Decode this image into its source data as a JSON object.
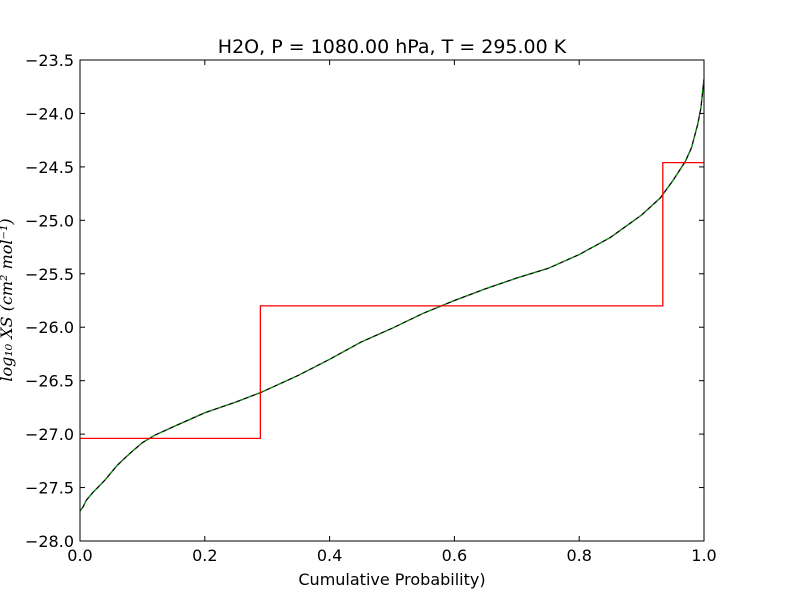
{
  "chart_data": {
    "type": "line",
    "title": "H2O, P = 1080.00 hPa, T = 295.00 K",
    "xlabel": "Cumulative Probability)",
    "ylabel": "log₁₀ XS (cm² mol⁻¹)",
    "xlim": [
      0.0,
      1.0
    ],
    "ylim": [
      -28.0,
      -23.5
    ],
    "x_ticks": [
      "0.0",
      "0.2",
      "0.4",
      "0.6",
      "0.8",
      "1.0"
    ],
    "y_ticks": [
      "−23.5",
      "−24.0",
      "−24.5",
      "−25.0",
      "−25.5",
      "−26.0",
      "−26.5",
      "−27.0",
      "−27.5",
      "−28.0"
    ],
    "grid": false,
    "series": [
      {
        "style": "smooth",
        "color": "#000000",
        "overlay_color": "#00aa00",
        "x": [
          0.0,
          0.005,
          0.01,
          0.02,
          0.04,
          0.06,
          0.08,
          0.1,
          0.12,
          0.15,
          0.2,
          0.25,
          0.29,
          0.35,
          0.4,
          0.45,
          0.5,
          0.55,
          0.6,
          0.65,
          0.7,
          0.75,
          0.8,
          0.85,
          0.9,
          0.93,
          0.95,
          0.97,
          0.98,
          0.99,
          0.995,
          1.0
        ],
        "y": [
          -27.72,
          -27.68,
          -27.62,
          -27.55,
          -27.43,
          -27.29,
          -27.18,
          -27.08,
          -27.01,
          -26.93,
          -26.8,
          -26.7,
          -26.61,
          -26.45,
          -26.3,
          -26.14,
          -26.01,
          -25.87,
          -25.75,
          -25.64,
          -25.54,
          -25.45,
          -25.32,
          -25.16,
          -24.95,
          -24.79,
          -24.63,
          -24.45,
          -24.32,
          -24.1,
          -23.95,
          -23.68
        ]
      },
      {
        "style": "step",
        "color": "#ff0000",
        "x": [
          0.0,
          0.289,
          0.289,
          0.934,
          0.934,
          1.0
        ],
        "y": [
          -27.04,
          -27.04,
          -25.8,
          -25.8,
          -24.46,
          -24.46
        ]
      }
    ]
  }
}
